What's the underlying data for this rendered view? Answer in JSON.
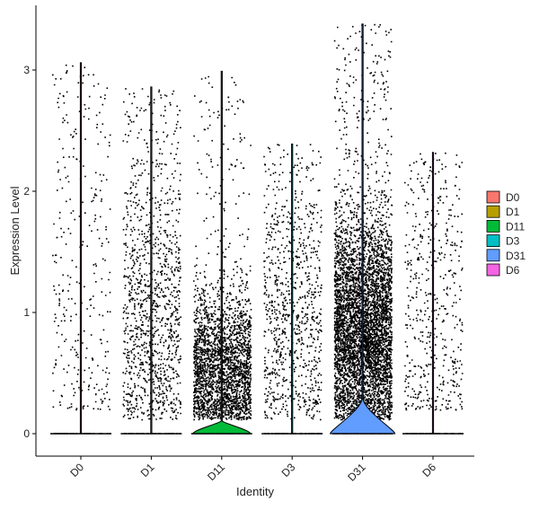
{
  "chart_data": {
    "type": "violin",
    "xlabel": "Identity",
    "ylabel": "Expression Level",
    "ylim": [
      -0.2,
      3.45
    ],
    "yticks": [
      0,
      1,
      2,
      3
    ],
    "y_tick_labels": [
      "0",
      "1",
      "2",
      "3"
    ],
    "categories": [
      "D0",
      "D1",
      "D11",
      "D3",
      "D31",
      "D6"
    ],
    "legend": {
      "position": "right"
    },
    "series": [
      {
        "name": "D0",
        "color": "#F8766D",
        "max": 3.06,
        "n_points": 320,
        "density": "low"
      },
      {
        "name": "D1",
        "color": "#B79F00",
        "max": 2.86,
        "n_points": 1200,
        "density": "medium"
      },
      {
        "name": "D11",
        "color": "#00BA38",
        "max": 2.99,
        "n_points": 2600,
        "density": "high"
      },
      {
        "name": "D3",
        "color": "#00BFC4",
        "max": 2.39,
        "n_points": 900,
        "density": "medium"
      },
      {
        "name": "D31",
        "color": "#619CFF",
        "max": 3.38,
        "n_points": 5200,
        "density": "very-high"
      },
      {
        "name": "D6",
        "color": "#F564E3",
        "max": 2.32,
        "n_points": 500,
        "density": "low"
      }
    ]
  }
}
